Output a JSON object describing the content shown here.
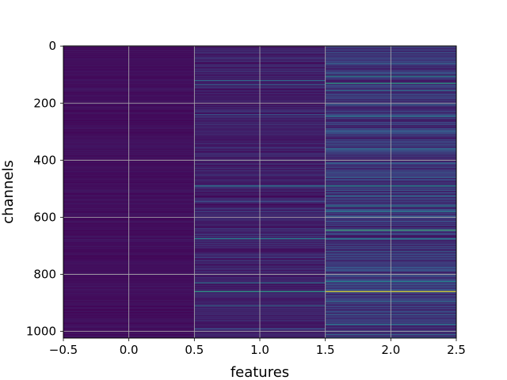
{
  "chart_data": {
    "type": "heatmap",
    "title": "",
    "xlabel": "features",
    "ylabel": "channels",
    "xlim": [
      -0.5,
      2.5
    ],
    "ylim": [
      1023.5,
      -0.5
    ],
    "y_inverted": true,
    "x_ticks": [
      "−0.5",
      "0.0",
      "0.5",
      "1.0",
      "1.5",
      "2.0",
      "2.5"
    ],
    "x_tick_values": [
      -0.5,
      0.0,
      0.5,
      1.0,
      1.5,
      2.0,
      2.5
    ],
    "y_ticks": [
      "0",
      "200",
      "400",
      "600",
      "800",
      "1000"
    ],
    "y_tick_values": [
      0,
      200,
      400,
      600,
      800,
      1000
    ],
    "grid": true,
    "colormap": "viridis",
    "n_channels": 1024,
    "n_features": 3,
    "features": [
      {
        "index": 0,
        "base_value": 0.04,
        "bright_channels": []
      },
      {
        "index": 1,
        "base_value": 0.08,
        "bright_channels": [
          {
            "channel": 120,
            "value": 0.35
          },
          {
            "channel": 135,
            "value": 0.3
          },
          {
            "channel": 240,
            "value": 0.28
          },
          {
            "channel": 490,
            "value": 0.4
          },
          {
            "channel": 545,
            "value": 0.25
          },
          {
            "channel": 580,
            "value": 0.22
          },
          {
            "channel": 675,
            "value": 0.45
          },
          {
            "channel": 740,
            "value": 0.2
          },
          {
            "channel": 830,
            "value": 0.38
          },
          {
            "channel": 860,
            "value": 0.55
          },
          {
            "channel": 910,
            "value": 0.35
          },
          {
            "channel": 990,
            "value": 0.25
          }
        ]
      },
      {
        "index": 2,
        "base_value": 0.14,
        "bright_channels": [
          {
            "channel": 60,
            "value": 0.3
          },
          {
            "channel": 105,
            "value": 0.45
          },
          {
            "channel": 130,
            "value": 0.55
          },
          {
            "channel": 155,
            "value": 0.35
          },
          {
            "channel": 205,
            "value": 0.3
          },
          {
            "channel": 245,
            "value": 0.4
          },
          {
            "channel": 300,
            "value": 0.28
          },
          {
            "channel": 360,
            "value": 0.35
          },
          {
            "channel": 410,
            "value": 0.3
          },
          {
            "channel": 460,
            "value": 0.32
          },
          {
            "channel": 490,
            "value": 0.5
          },
          {
            "channel": 525,
            "value": 0.35
          },
          {
            "channel": 560,
            "value": 0.45
          },
          {
            "channel": 580,
            "value": 0.4
          },
          {
            "channel": 600,
            "value": 0.3
          },
          {
            "channel": 645,
            "value": 0.62
          },
          {
            "channel": 675,
            "value": 0.4
          },
          {
            "channel": 720,
            "value": 0.3
          },
          {
            "channel": 775,
            "value": 0.28
          },
          {
            "channel": 825,
            "value": 0.45
          },
          {
            "channel": 860,
            "value": 0.95
          },
          {
            "channel": 895,
            "value": 0.35
          },
          {
            "channel": 940,
            "value": 0.3
          },
          {
            "channel": 975,
            "value": 0.4
          },
          {
            "channel": 1010,
            "value": 0.32
          }
        ]
      }
    ]
  }
}
